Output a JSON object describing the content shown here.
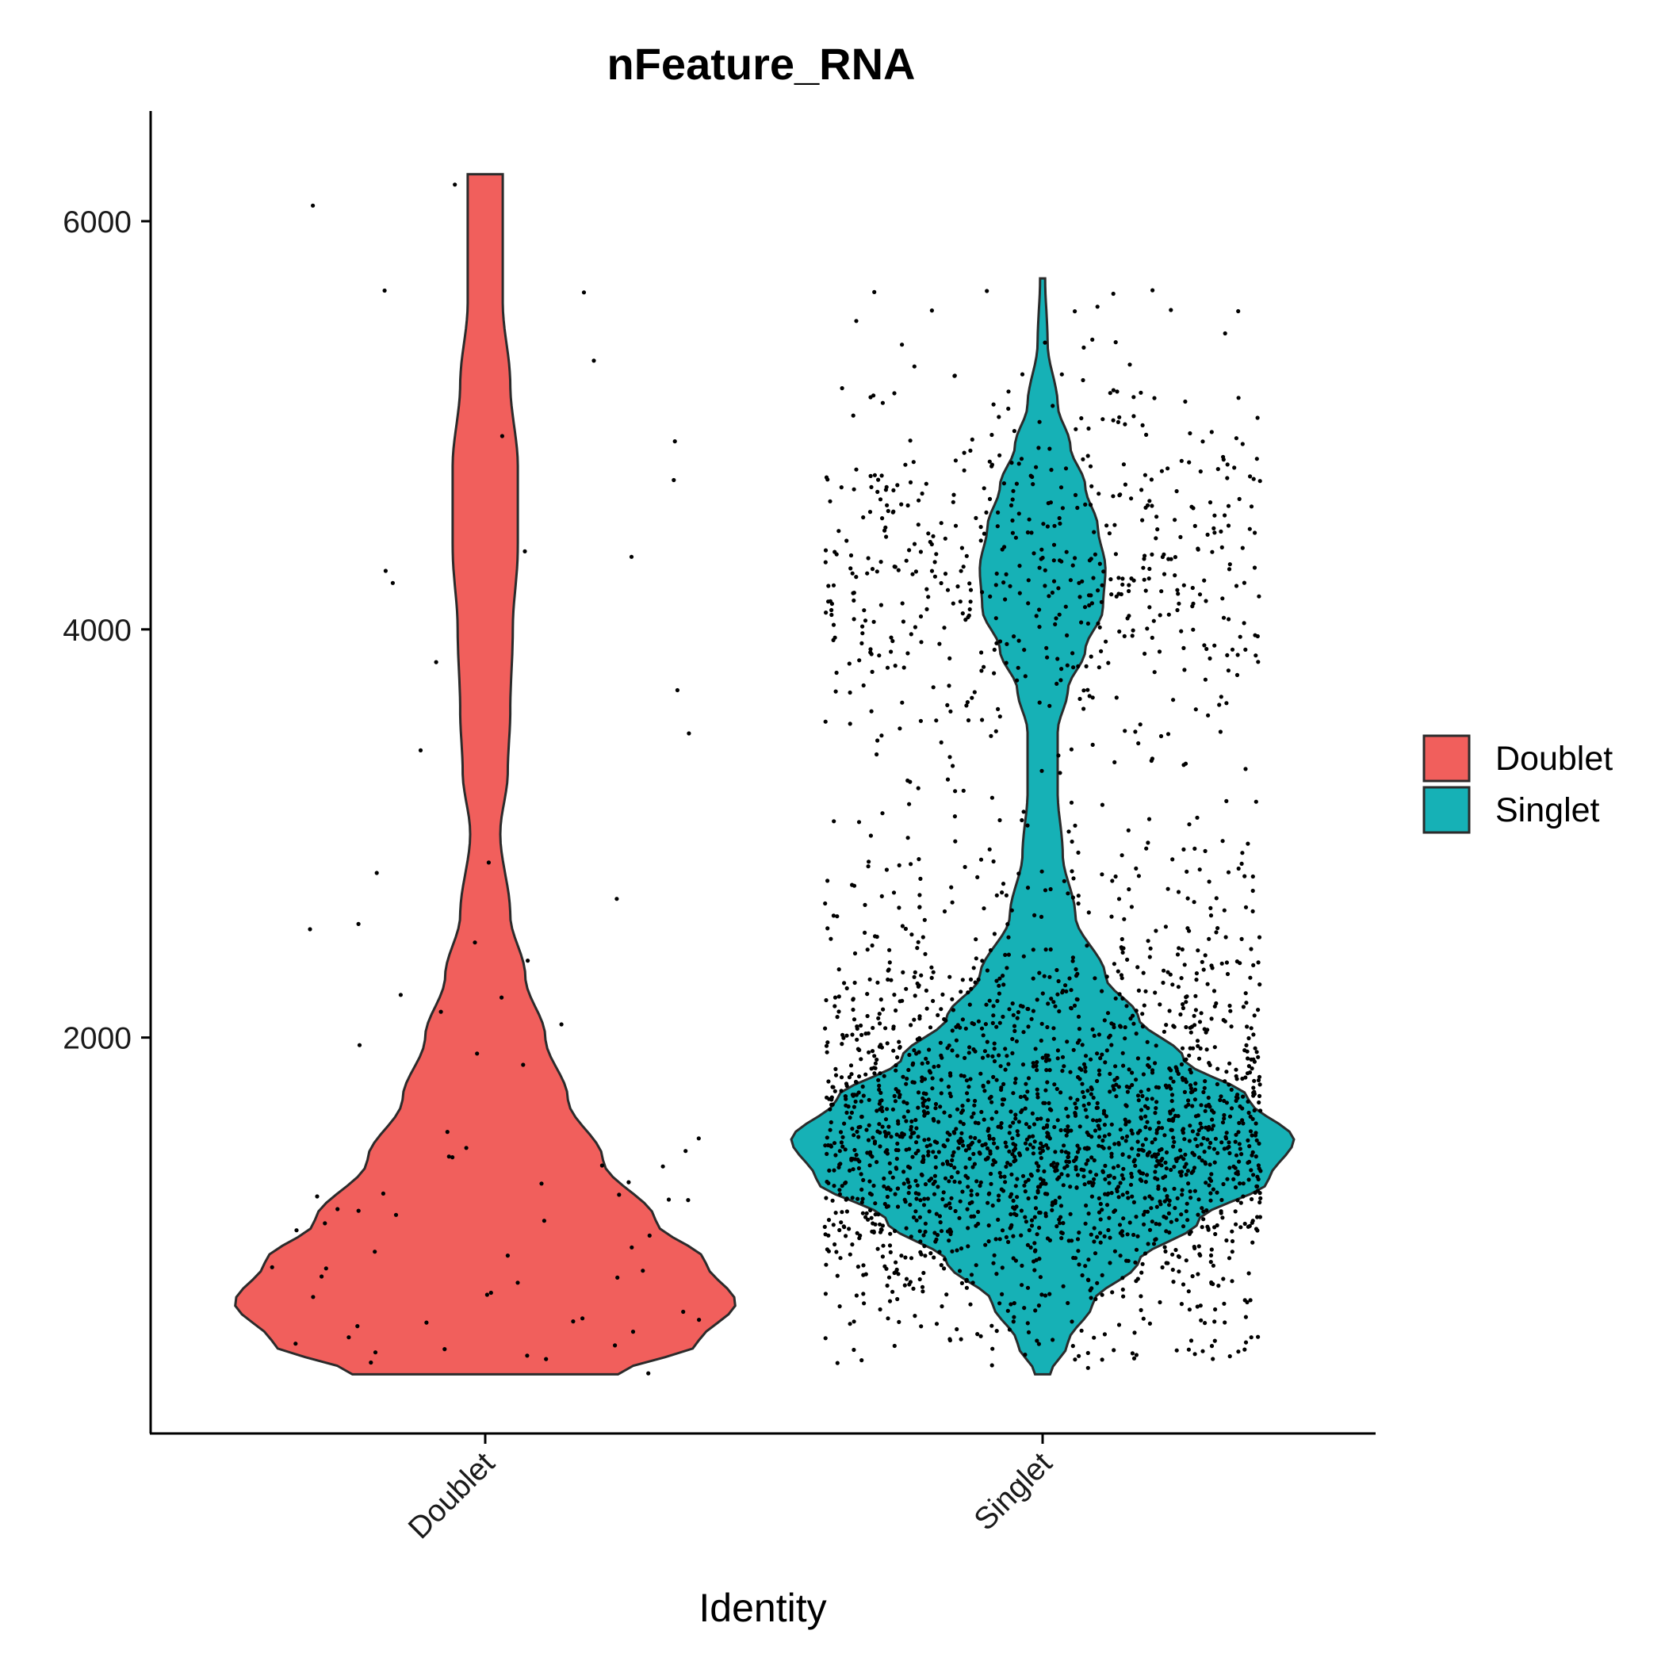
{
  "chart_data": {
    "type": "violin",
    "title": "nFeature_RNA",
    "xlabel": "Identity",
    "ylabel": "",
    "categories": [
      "Doublet",
      "Singlet"
    ],
    "ylim": [
      60,
      6540
    ],
    "yticks": [
      2000,
      4000,
      6000
    ],
    "ytick_labels": [
      "2000",
      "4000",
      "6000"
    ],
    "legend": {
      "position": "right",
      "entries": [
        {
          "label": "Doublet",
          "color": "#F15F5C"
        },
        {
          "label": "Singlet",
          "color": "#16B1B6"
        }
      ]
    },
    "grid": false,
    "series": [
      {
        "name": "Doublet",
        "color": "#F15F5C",
        "n_points": 80,
        "range": [
          350,
          6230
        ],
        "density_profile": [
          [
            350,
            0.53
          ],
          [
            500,
            0.85
          ],
          [
            700,
            1.0
          ],
          [
            900,
            0.88
          ],
          [
            1100,
            0.68
          ],
          [
            1400,
            0.47
          ],
          [
            1700,
            0.33
          ],
          [
            2000,
            0.24
          ],
          [
            2300,
            0.16
          ],
          [
            2600,
            0.1
          ],
          [
            3000,
            0.06
          ],
          [
            3300,
            0.09
          ],
          [
            3600,
            0.1
          ],
          [
            4000,
            0.11
          ],
          [
            4400,
            0.13
          ],
          [
            4800,
            0.13
          ],
          [
            5200,
            0.1
          ],
          [
            5600,
            0.07
          ],
          [
            5900,
            0.07
          ],
          [
            6230,
            0.07
          ]
        ]
      },
      {
        "name": "Singlet",
        "color": "#16B1B6",
        "n_points": 2700,
        "range": [
          350,
          5720
        ],
        "density_profile": [
          [
            350,
            0.03
          ],
          [
            500,
            0.1
          ],
          [
            700,
            0.2
          ],
          [
            900,
            0.38
          ],
          [
            1100,
            0.62
          ],
          [
            1300,
            0.9
          ],
          [
            1500,
            1.0
          ],
          [
            1700,
            0.82
          ],
          [
            1900,
            0.56
          ],
          [
            2100,
            0.38
          ],
          [
            2300,
            0.25
          ],
          [
            2600,
            0.13
          ],
          [
            2900,
            0.08
          ],
          [
            3200,
            0.06
          ],
          [
            3500,
            0.06
          ],
          [
            3700,
            0.1
          ],
          [
            3900,
            0.17
          ],
          [
            4100,
            0.24
          ],
          [
            4300,
            0.25
          ],
          [
            4500,
            0.22
          ],
          [
            4700,
            0.17
          ],
          [
            4900,
            0.11
          ],
          [
            5100,
            0.06
          ],
          [
            5400,
            0.02
          ],
          [
            5720,
            0.01
          ]
        ]
      }
    ]
  }
}
